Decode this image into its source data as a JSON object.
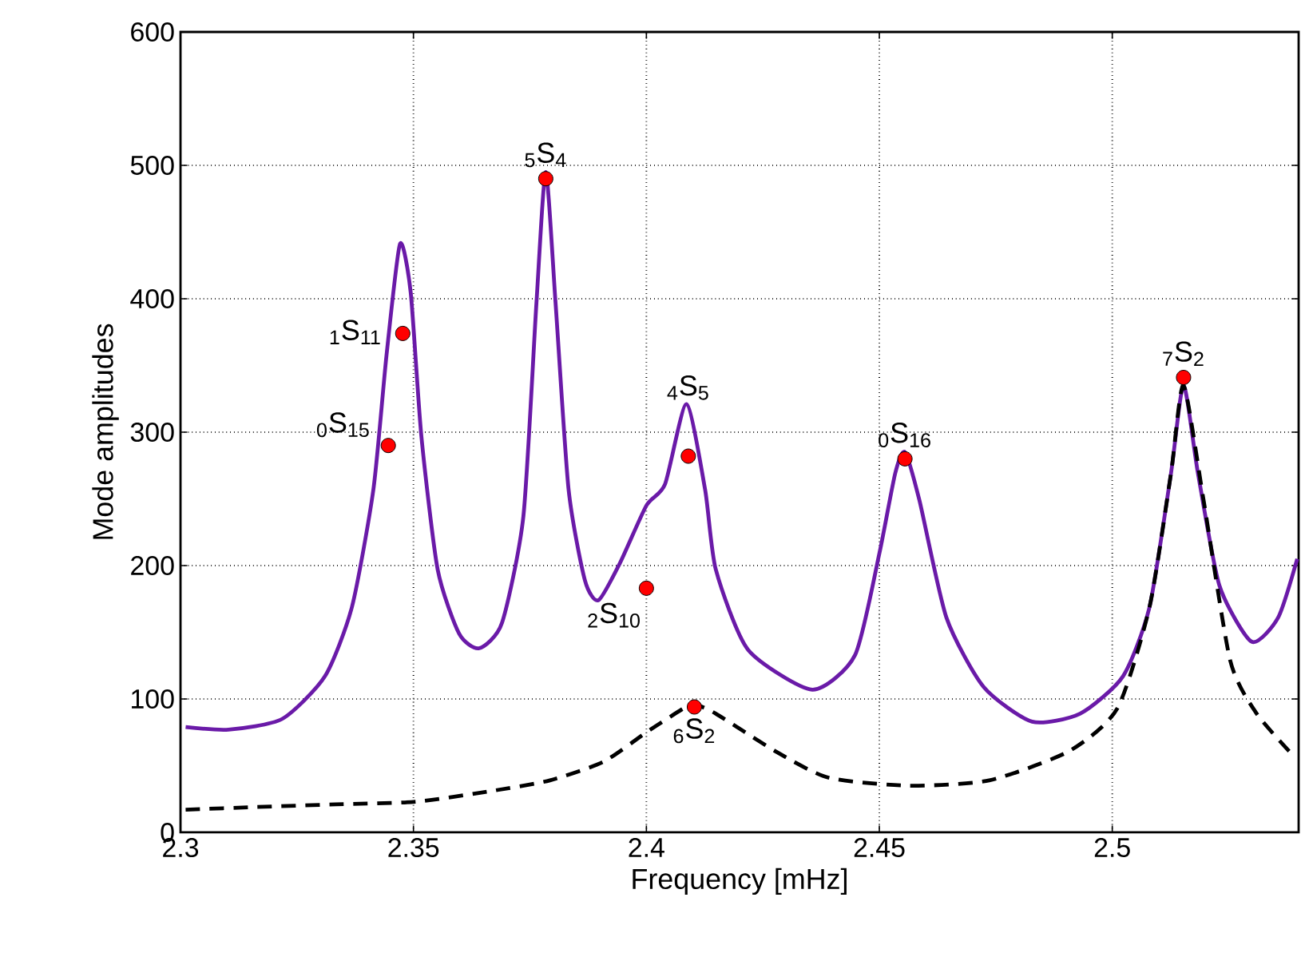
{
  "chart_data": {
    "type": "line",
    "xlabel": "Frequency [mHz]",
    "ylabel": "Mode amplitudes",
    "xlim": [
      2.3,
      2.54
    ],
    "ylim": [
      0,
      600
    ],
    "xticks": [
      2.3,
      2.35,
      2.4,
      2.45,
      2.5
    ],
    "yticks": [
      0,
      100,
      200,
      300,
      400,
      500,
      600
    ],
    "grid": true,
    "series": [
      {
        "color": "#6a1aa8",
        "line_style": "solid",
        "marker": "none",
        "x": [
          2.3011,
          2.3103,
          2.3218,
          2.331,
          2.3368,
          2.3414,
          2.3442,
          2.3471,
          2.3494,
          2.3517,
          2.3552,
          2.3598,
          2.3641,
          2.369,
          2.3736,
          2.3764,
          2.3784,
          2.3805,
          2.3833,
          2.3868,
          2.3897,
          2.3942,
          2.4,
          2.404,
          2.4086,
          2.4126,
          2.4149,
          2.4218,
          2.4356,
          2.4448,
          2.45,
          2.4534,
          2.4555,
          2.4586,
          2.4644,
          2.4724,
          2.4828,
          2.4931,
          2.5023,
          2.508,
          2.5126,
          2.5153,
          2.5184,
          2.523,
          2.5299,
          2.5356,
          2.5397
        ],
        "values": [
          79,
          77,
          85,
          117,
          169,
          257,
          357,
          441,
          405,
          297,
          197,
          149,
          138,
          157,
          237,
          397,
          495,
          397,
          257,
          189,
          174,
          201,
          245,
          261,
          321,
          257,
          197,
          137,
          107,
          133,
          209,
          269,
          285,
          249,
          161,
          109,
          83,
          89,
          117,
          169,
          269,
          335,
          269,
          185,
          143,
          161,
          205
        ]
      },
      {
        "color": "#000000",
        "line_style": "dashed",
        "marker": "none",
        "x": [
          2.3011,
          2.3161,
          2.3333,
          2.3506,
          2.3667,
          2.3793,
          2.3908,
          2.4,
          2.408,
          2.4103,
          2.4149,
          2.4276,
          2.4391,
          2.4563,
          2.4736,
          2.4908,
          2.5011,
          2.508,
          2.5126,
          2.5153,
          2.5196,
          2.5253,
          2.531,
          2.539
        ],
        "values": [
          17,
          19,
          21,
          23,
          31,
          39,
          53,
          75,
          93,
          96,
          89,
          61,
          41,
          35,
          39,
          61,
          93,
          169,
          269,
          335,
          249,
          129,
          89,
          57
        ]
      },
      {
        "type": "scatter",
        "color": "#ff0000",
        "marker": "circle",
        "x": [
          2.3446,
          2.3477,
          2.3784,
          2.409,
          2.4,
          2.4103,
          2.4555,
          2.5153
        ],
        "values": [
          290,
          374,
          490,
          282,
          183,
          94,
          280,
          341
        ]
      }
    ],
    "annotations": [
      {
        "text": "$_{0}$S$_{15}$",
        "x": 2.3446,
        "y": 290
      },
      {
        "text": "$_{1}$S$_{11}$",
        "x": 2.3477,
        "y": 374
      },
      {
        "text": "$_{5}$S$_{4}$",
        "x": 2.3784,
        "y": 490
      },
      {
        "text": "$_{4}$S$_{5}$",
        "x": 2.409,
        "y": 282
      },
      {
        "text": "$_{2}$S$_{10}$",
        "x": 2.4,
        "y": 183
      },
      {
        "text": "$_{6}$S$_{2}$",
        "x": 2.4103,
        "y": 94
      },
      {
        "text": "$_{0}$S$_{16}$",
        "x": 2.4555,
        "y": 280
      },
      {
        "text": "$_{7}$S$_{2}$",
        "x": 2.5153,
        "y": 341
      }
    ]
  }
}
